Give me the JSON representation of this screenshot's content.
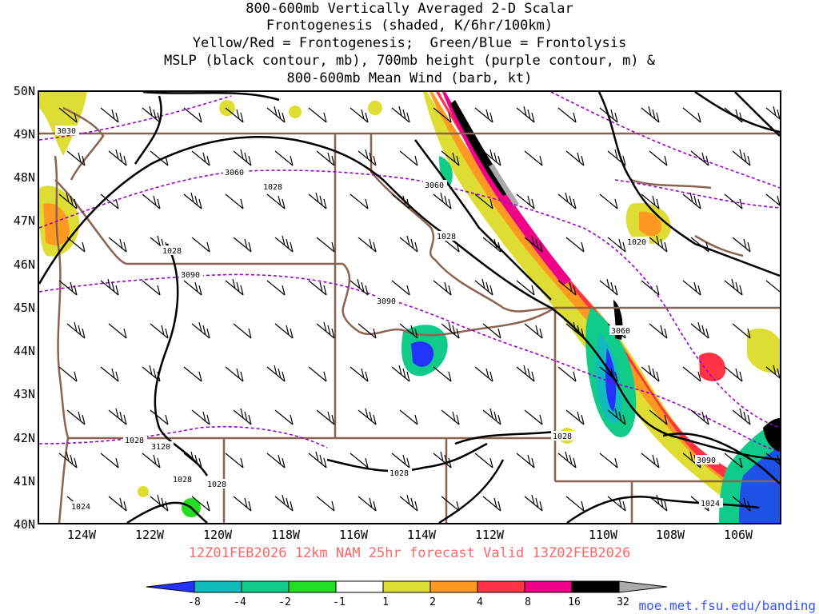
{
  "title": {
    "line1": "800-600mb Vertically Averaged 2-D Scalar",
    "line2": "Frontogenesis (shaded, K/6hr/100km)",
    "line3": "Yellow/Red = Frontogenesis;  Green/Blue = Frontolysis",
    "line4": "MSLP (black contour, mb), 700mb height (purple contour, m) &",
    "line5": "800-600mb Mean Wind (barb, kt)"
  },
  "axes": {
    "lat_labels": [
      "50N",
      "49N",
      "48N",
      "47N",
      "46N",
      "45N",
      "44N",
      "43N",
      "42N",
      "41N",
      "40N"
    ],
    "lon_labels": [
      "124W",
      "122W",
      "120W",
      "118W",
      "116W",
      "114W",
      "112W",
      "110W",
      "108W",
      "106W"
    ]
  },
  "contour_labels": {
    "mslp": [
      "1028",
      "1028",
      "1028",
      "1028",
      "1028",
      "1028",
      "1028",
      "1020",
      "1024",
      "1024",
      "1028"
    ],
    "height": [
      "3030",
      "3060",
      "3060",
      "3090",
      "3090",
      "3060",
      "3120",
      "3090"
    ]
  },
  "footer": "12Z01FEB2026 12km NAM 25hr forecast Valid 13Z02FEB2026",
  "colorbar": {
    "labels": [
      "-8",
      "-4",
      "-2",
      "-1",
      "1",
      "2",
      "4",
      "8",
      "16",
      "32"
    ],
    "colors": [
      "#2233ff",
      "#11bbbb",
      "#11cc88",
      "#22dd22",
      "#ffffff",
      "#dddd33",
      "#ff9922",
      "#ff3344",
      "#ee0088",
      "#000000",
      "#aaaaaa"
    ]
  },
  "credit": "moe.met.fsu.edu/banding"
}
